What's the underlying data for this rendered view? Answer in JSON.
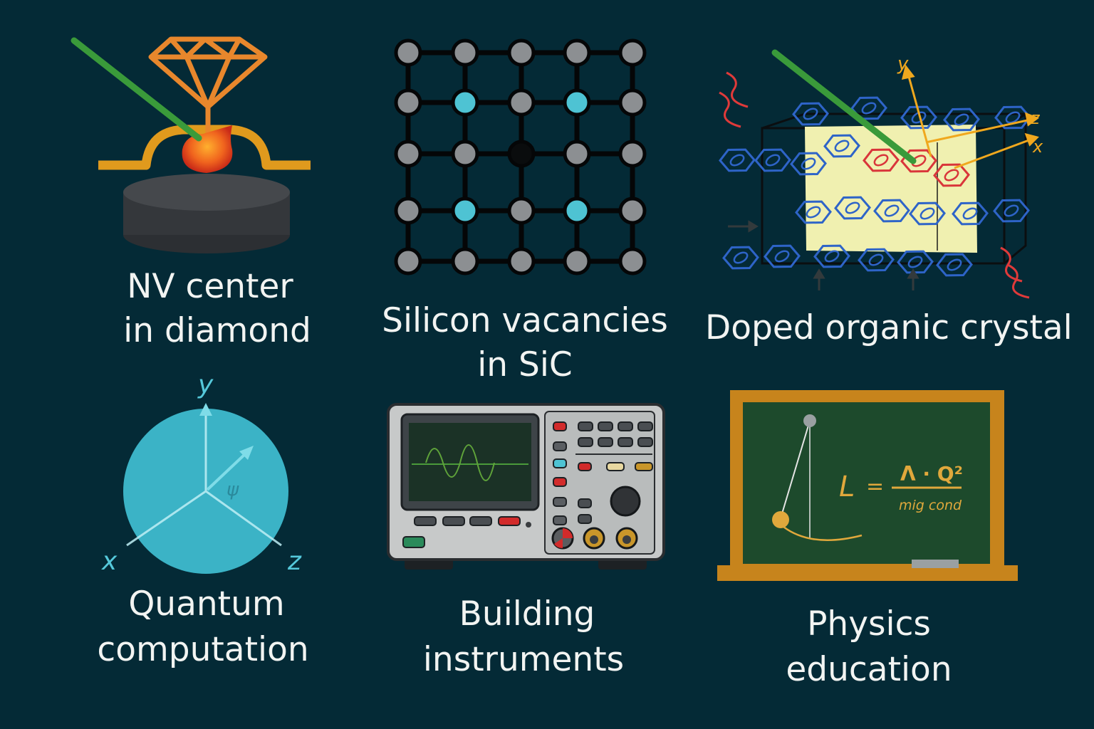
{
  "panels": {
    "nv": {
      "line1": "NV center",
      "line2": "in diamond"
    },
    "sic": {
      "line1": "Silicon vacancies",
      "line2": "in SiC"
    },
    "organic": {
      "line1": "Doped organic crystal"
    },
    "quantum": {
      "line1": "Quantum",
      "line2": "computation",
      "axis_x": "x",
      "axis_y": "y",
      "axis_z": "z",
      "psi": "ψ"
    },
    "instruments": {
      "line1": "Building",
      "line2": "instruments"
    },
    "education": {
      "line1": "Physics",
      "line2": "education",
      "eq_lhs": "L",
      "eq_eq": "=",
      "eq_num": "Λ · Q²",
      "eq_den": "mig cond"
    }
  },
  "organic_axes": {
    "x": "x",
    "y": "y",
    "z": "z"
  },
  "colors": {
    "background": "#042a36",
    "laser": "#3a9a3a",
    "diamond": "#e8872c",
    "vacancy": "#4ec3d3",
    "chalkboard": "#1d4a2c",
    "frame": "#c7841c"
  }
}
